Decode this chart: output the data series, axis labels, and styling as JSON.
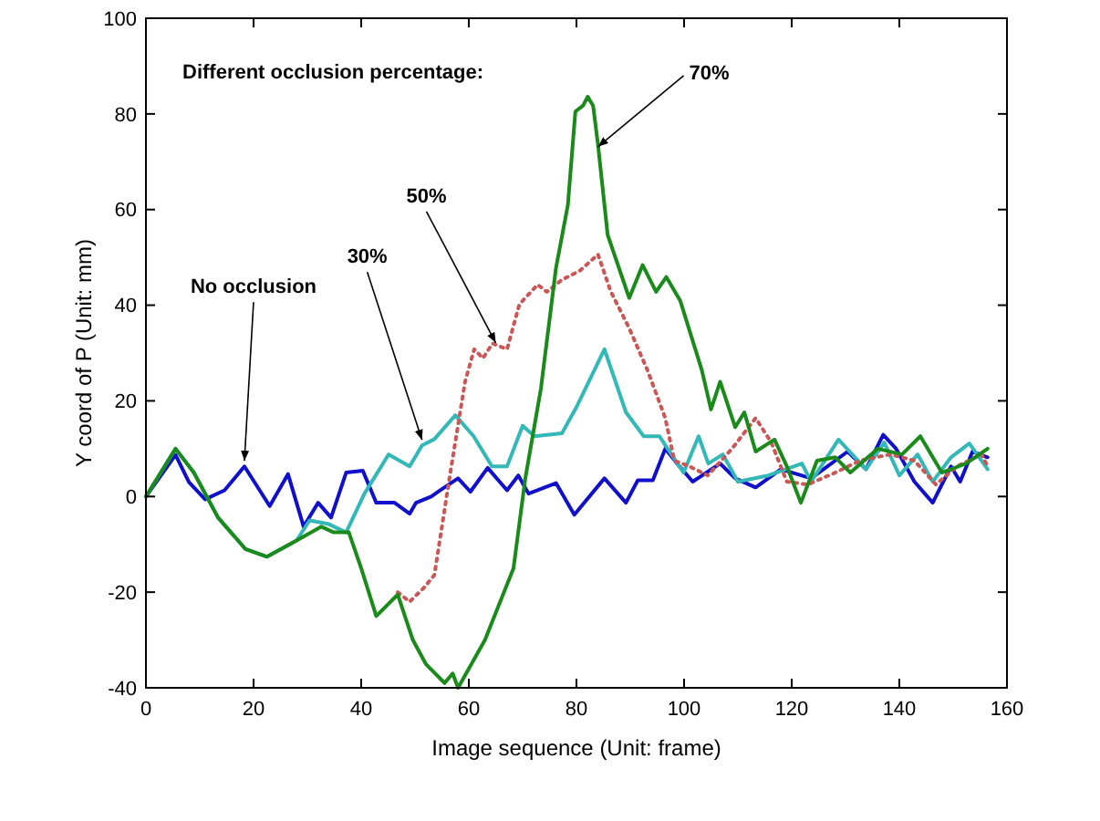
{
  "chart_data": {
    "type": "line",
    "xlabel": "Image sequence (Unit: frame)",
    "ylabel": "Y coord of P (Unit: mm)",
    "xlim": [
      0,
      160
    ],
    "ylim": [
      -40,
      100
    ],
    "xticks": [
      0,
      20,
      40,
      60,
      80,
      100,
      120,
      140,
      160
    ],
    "yticks": [
      -40,
      -20,
      0,
      20,
      40,
      60,
      80,
      100
    ],
    "grid": false,
    "annotations": [
      "Different occlusion percentage:",
      {
        "text": "No occlusion",
        "x": 18.3,
        "y": 6.3
      },
      {
        "text": "30%",
        "x": 51.3,
        "y": 10.7
      },
      {
        "text": "50%",
        "x": 65,
        "y": 31
      },
      {
        "text": "70%",
        "x": 84,
        "y": 72
      }
    ],
    "series": [
      {
        "color": "#1010cc",
        "line_style": "solid",
        "x": [
          0,
          5.5,
          8,
          11,
          14.6,
          18.3,
          23,
          26.4,
          29.3,
          32,
          34.4,
          37.2,
          40.3,
          42.8,
          46.2,
          49,
          50.2,
          53,
          54.7,
          58,
          60.3,
          63.5,
          67.1,
          69.2,
          71.1,
          76.2,
          79.6,
          85.2,
          89.2,
          91.4,
          94.2,
          96.5,
          98.7,
          101.6,
          106.7,
          109.5,
          113.3,
          118,
          123.6,
          130.4,
          133.8,
          137,
          139.4,
          142.8,
          146.2,
          149.6,
          151.3,
          153.6,
          156.4
        ],
        "values": [
          0,
          8.7,
          3,
          -0.6,
          1.3,
          6.3,
          -2,
          4.7,
          -6.3,
          -1.3,
          -4.4,
          5,
          5.4,
          -1.3,
          -1.3,
          -3.6,
          -1.3,
          0,
          1.3,
          3.8,
          1,
          6,
          1.3,
          4.4,
          0.6,
          2.8,
          -3.8,
          3.8,
          -1.3,
          3.4,
          3.4,
          10,
          6.9,
          3.1,
          6.9,
          3.8,
          1.9,
          5.7,
          3.8,
          9.4,
          5.7,
          12.9,
          10,
          3.1,
          -1.3,
          6.3,
          3.1,
          9.4,
          8.2
        ]
      },
      {
        "color": "#33b8b8",
        "line_style": "solid",
        "x": [
          0,
          5.5,
          8.9,
          13.4,
          18.5,
          22.5,
          28,
          30.4,
          33.8,
          37.2,
          40.6,
          45.1,
          49,
          51.3,
          53.6,
          57.5,
          60.9,
          64.3,
          67.1,
          70,
          72.2,
          77.3,
          80.1,
          85.2,
          89.2,
          92.5,
          95.4,
          99.9,
          102.7,
          104.5,
          107.2,
          110,
          115.7,
          121.9,
          123.6,
          128.7,
          133.8,
          137.2,
          140,
          143.4,
          146.2,
          149.6,
          153,
          156.4
        ],
        "values": [
          0,
          10,
          5,
          -4.4,
          -11,
          -12.6,
          -9.2,
          -5,
          -5.7,
          -7.5,
          0.6,
          8.8,
          6.3,
          10.7,
          12,
          17,
          12.6,
          6.3,
          6.3,
          14.8,
          12.6,
          13.2,
          18.9,
          30.8,
          17.6,
          12.6,
          12.6,
          5,
          12.6,
          6.9,
          8.8,
          3.1,
          4.4,
          6.9,
          3.1,
          11.9,
          5.7,
          11.3,
          4.4,
          8.8,
          3.1,
          8.2,
          11.1,
          5.7
        ]
      },
      {
        "color": "#cc5555",
        "line_style": "dotted",
        "x": [
          46.8,
          49,
          51.8,
          53.6,
          56.4,
          59.3,
          61,
          62.6,
          64.4,
          67.1,
          69.4,
          72.8,
          74.5,
          77.3,
          80.6,
          84,
          86.4,
          89.8,
          93.2,
          96.5,
          98.2,
          101,
          104.4,
          108.9,
          113.3,
          116.2,
          119.1,
          123,
          128.1,
          132.7,
          138.3,
          142.8,
          146.8,
          150.7,
          155.3,
          156.4
        ],
        "values": [
          -20,
          -22,
          -18.9,
          -16.4,
          3.8,
          24,
          30.8,
          28.9,
          32,
          30.8,
          40.2,
          44.3,
          42.8,
          45.3,
          47.2,
          50.6,
          42.8,
          35.2,
          26.4,
          16.4,
          7.5,
          6.3,
          4.4,
          10,
          16.4,
          11.3,
          3.1,
          2.5,
          5,
          7.5,
          8.8,
          7.5,
          2.5,
          6.3,
          8.8,
          6.3
        ]
      },
      {
        "color": "#1a8a1a",
        "line_style": "solid",
        "x": [
          0,
          5.5,
          8.9,
          13.4,
          18.5,
          22.5,
          28,
          32.6,
          34.9,
          37.7,
          40,
          42.8,
          46.8,
          49.6,
          52,
          55.5,
          57,
          58,
          60,
          63,
          68.3,
          70.5,
          73.4,
          76.2,
          78.4,
          79.8,
          81.2,
          82.1,
          83.1,
          84,
          85.8,
          89.8,
          92.3,
          94.8,
          96.7,
          99.3,
          103.3,
          105,
          106.7,
          109.5,
          111.2,
          113.3,
          116.8,
          119.1,
          121.7,
          124.7,
          128.1,
          130.9,
          136,
          140.5,
          143.9,
          147.9,
          152.4,
          156.4
        ],
        "values": [
          0,
          10,
          5,
          -4.4,
          -11,
          -12.6,
          -9.2,
          -6.3,
          -7.5,
          -7.5,
          -15,
          -25,
          -20.5,
          -30,
          -35,
          -39,
          -37,
          -40,
          -36,
          -30,
          -15,
          3.8,
          22.6,
          47.8,
          60.9,
          80.5,
          81.7,
          83.6,
          81.7,
          73.6,
          54.7,
          41.5,
          48.4,
          42.8,
          45.9,
          40.9,
          26.4,
          18.2,
          24,
          14.5,
          17.6,
          9.4,
          11.9,
          6.3,
          -1.3,
          7.5,
          8.2,
          5,
          10,
          8.8,
          12.6,
          5,
          6.9,
          10
        ]
      }
    ]
  }
}
